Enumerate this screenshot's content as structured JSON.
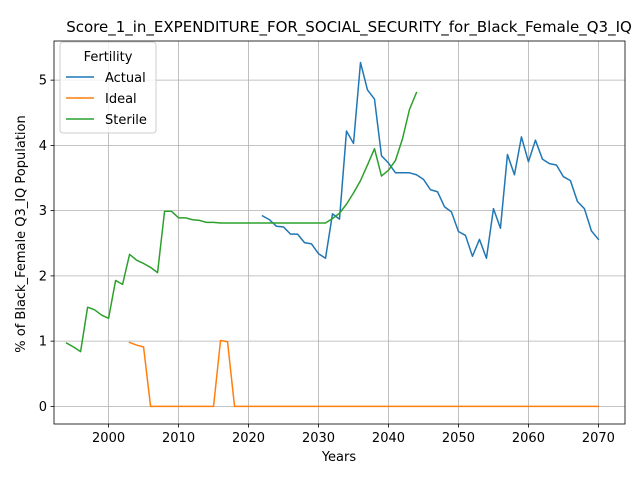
{
  "chart_data": {
    "type": "line",
    "title": "Score_1_in_EXPENDITURE_FOR_SOCIAL_SECURITY_for_Black_Female_Q3_IQ",
    "xlabel": "Years",
    "ylabel": "% of Black_Female Q3_IQ Population",
    "xlim": [
      1992.2,
      2073.8
    ],
    "ylim": [
      -0.27,
      5.6
    ],
    "x_ticks": [
      2000,
      2010,
      2020,
      2030,
      2040,
      2050,
      2060,
      2070
    ],
    "y_ticks": [
      0,
      1,
      2,
      3,
      4,
      5
    ],
    "grid": true,
    "legend": {
      "title": "Fertility",
      "placement": "top-left"
    },
    "series": [
      {
        "name": "Actual",
        "color": "#1f77b4",
        "x": [
          2022,
          2023,
          2024,
          2025,
          2026,
          2027,
          2028,
          2029,
          2030,
          2031,
          2032,
          2033,
          2034,
          2035,
          2036,
          2037,
          2038,
          2039,
          2040,
          2041,
          2042,
          2043,
          2044,
          2045,
          2046,
          2047,
          2048,
          2049,
          2050,
          2051,
          2052,
          2053,
          2054,
          2055,
          2056,
          2057,
          2058,
          2059,
          2060,
          2061,
          2062,
          2063,
          2064,
          2065,
          2066,
          2067,
          2068,
          2069,
          2070
        ],
        "y": [
          2.92,
          2.86,
          2.76,
          2.75,
          2.64,
          2.64,
          2.51,
          2.49,
          2.34,
          2.27,
          2.95,
          2.87,
          4.22,
          4.03,
          5.27,
          4.85,
          4.71,
          3.84,
          3.73,
          3.58,
          3.58,
          3.58,
          3.55,
          3.48,
          3.32,
          3.29,
          3.06,
          2.98,
          2.68,
          2.62,
          2.3,
          2.56,
          2.27,
          3.03,
          2.73,
          3.86,
          3.55,
          4.13,
          3.75,
          4.08,
          3.79,
          3.72,
          3.7,
          3.52,
          3.46,
          3.14,
          3.03,
          2.69,
          2.56
        ]
      },
      {
        "name": "Ideal",
        "color": "#ff7f0e",
        "x": [
          2003,
          2004,
          2005,
          2006,
          2007,
          2008,
          2009,
          2010,
          2011,
          2012,
          2013,
          2014,
          2015,
          2016,
          2017,
          2018,
          2019,
          2020,
          2021,
          2022,
          2023,
          2024,
          2025,
          2026,
          2027,
          2028,
          2029,
          2030,
          2031,
          2032,
          2033,
          2034,
          2035,
          2036,
          2037,
          2038,
          2039,
          2040,
          2041,
          2042,
          2043,
          2044,
          2045,
          2046,
          2047,
          2048,
          2049,
          2050,
          2051,
          2052,
          2053,
          2054,
          2055,
          2056,
          2057,
          2058,
          2059,
          2060,
          2061,
          2062,
          2063,
          2064,
          2065,
          2066,
          2067,
          2068,
          2069,
          2070
        ],
        "y": [
          0.98,
          0.94,
          0.91,
          0,
          0,
          0,
          0,
          0,
          0,
          0,
          0,
          0,
          0,
          1.01,
          0.99,
          0,
          0,
          0,
          0,
          0,
          0,
          0,
          0,
          0,
          0,
          0,
          0,
          0,
          0,
          0,
          0,
          0,
          0,
          0,
          0,
          0,
          0,
          0,
          0,
          0,
          0,
          0,
          0,
          0,
          0,
          0,
          0,
          0,
          0,
          0,
          0,
          0,
          0,
          0,
          0,
          0,
          0,
          0,
          0,
          0,
          0,
          0,
          0,
          0,
          0,
          0,
          0,
          0
        ]
      },
      {
        "name": "Sterile",
        "color": "#2ca02c",
        "x": [
          1994,
          1995,
          1996,
          1997,
          1998,
          1999,
          2000,
          2001,
          2002,
          2003,
          2004,
          2005,
          2006,
          2007,
          2008,
          2009,
          2010,
          2011,
          2012,
          2013,
          2014,
          2015,
          2016,
          2017,
          2018,
          2019,
          2020,
          2021,
          2022,
          2023,
          2024,
          2025,
          2026,
          2027,
          2028,
          2029,
          2030,
          2031,
          2032,
          2033,
          2034,
          2035,
          2036,
          2037,
          2038,
          2039,
          2040,
          2041,
          2042,
          2043,
          2044
        ],
        "y": [
          0.97,
          0.91,
          0.84,
          1.52,
          1.48,
          1.4,
          1.35,
          1.93,
          1.87,
          2.33,
          2.24,
          2.19,
          2.13,
          2.05,
          2.99,
          2.99,
          2.89,
          2.89,
          2.86,
          2.85,
          2.82,
          2.82,
          2.81,
          2.81,
          2.81,
          2.81,
          2.81,
          2.81,
          2.81,
          2.81,
          2.81,
          2.81,
          2.81,
          2.81,
          2.81,
          2.81,
          2.81,
          2.81,
          2.88,
          2.96,
          3.1,
          3.27,
          3.46,
          3.7,
          3.95,
          3.53,
          3.62,
          3.77,
          4.1,
          4.55,
          4.81
        ]
      }
    ]
  }
}
